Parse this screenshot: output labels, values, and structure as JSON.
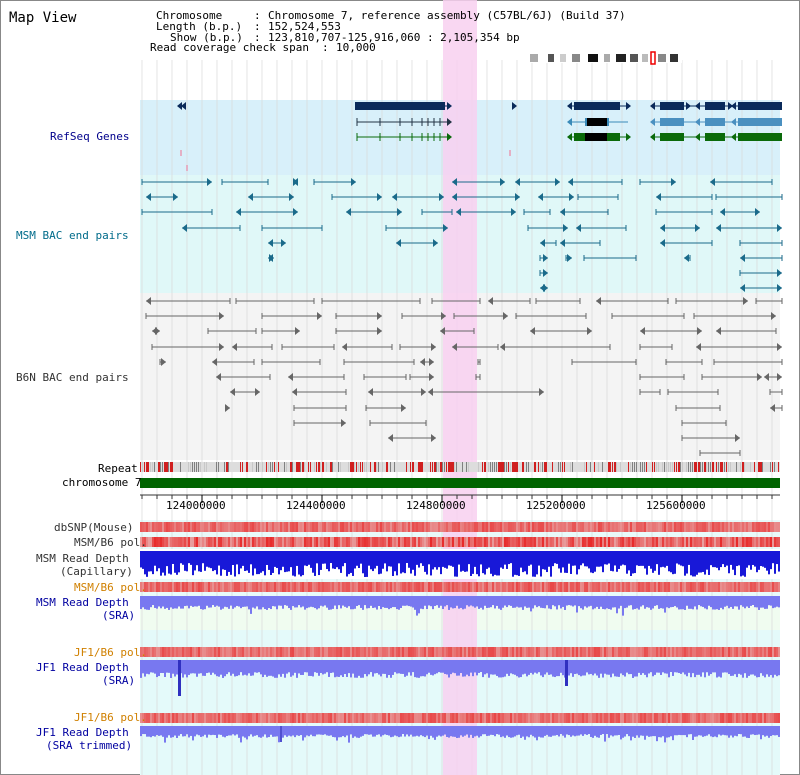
{
  "title": "Map View",
  "info": {
    "chromosome_label": "Chromosome",
    "chromosome_value": "Chromosome 7, reference assembly (C57BL/6J) (Build 37)",
    "length_label": "Length (b.p.)",
    "length_value": "152,524,553",
    "show_label": "Show (b.p.)",
    "show_value": "123,810,707-125,916,060 : 2,105,354 bp",
    "read_label": "Read coverage check span",
    "read_value": "10,000"
  },
  "tracks": {
    "refseq": "RefSeq Genes",
    "msm_bac": "MSM BAC end pairs",
    "b6n_bac": "B6N BAC end pairs",
    "repeat": "Repeat",
    "chromosome": "chromosome 7",
    "dbsnp": "dbSNP(Mouse)",
    "msm_b6_pol_1": "MSM/B6 pol.",
    "msm_read_depth_cap_1": "MSM Read Depth",
    "msm_read_depth_cap_2": "(Capillary)",
    "msm_b6_pol_2": "MSM/B6 pol.",
    "msm_read_depth_sra_1": "MSM Read Depth",
    "msm_read_depth_sra_2": "(SRA)",
    "jf1_b6_pol_1": "JF1/B6 pol.",
    "jf1_read_depth_sra_1": "JF1 Read Depth",
    "jf1_read_depth_sra_2": "(SRA)",
    "jf1_b6_pol_2": "JF1/B6 pol.",
    "jf1_read_depth_trim_1": "JF1 Read Depth",
    "jf1_read_depth_trim_2": "(SRA trimmed)"
  },
  "ruler": {
    "ticks": [
      "124000000",
      "124400000",
      "124800000",
      "125200000",
      "125600000"
    ]
  },
  "colors": {
    "refseq_bg": "#d8f0fa",
    "msm_bg": "#e0f8f8",
    "b6n_bg": "#f4f4f4",
    "highlight": "#f8d0f0",
    "chromosome_bar": "#006400",
    "msm_depth": "#1a1ad8",
    "sra_depth": "#7878f0",
    "pol_red": "#e82020"
  }
}
